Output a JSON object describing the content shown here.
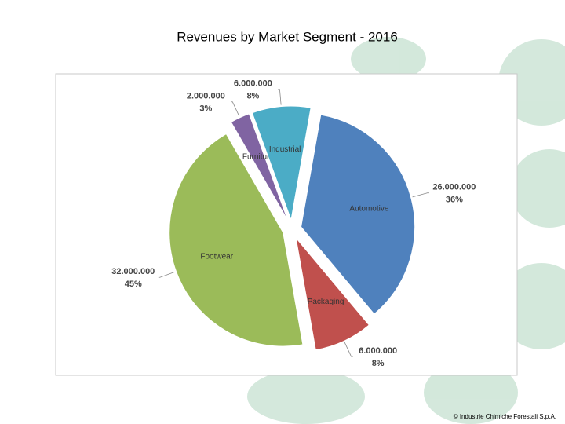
{
  "chart_data": {
    "type": "pie",
    "title": "Revenues by Market Segment - 2016",
    "categories": [
      "Automotive",
      "Packaging",
      "Footwear",
      "Furniture",
      "Industrial"
    ],
    "values": [
      26000000,
      6000000,
      32000000,
      2000000,
      6000000
    ],
    "value_labels": [
      "26.000.000",
      "6.000.000",
      "32.000.000",
      "2.000.000",
      "6.000.000"
    ],
    "percent_labels": [
      "36%",
      "8%",
      "45%",
      "3%",
      "8%"
    ],
    "colors": [
      "#4f81bd",
      "#c0504d",
      "#9bbb59",
      "#8064a2",
      "#4bacc6"
    ],
    "footer": "© Industrie Chimiche Forestali S.p.A."
  }
}
